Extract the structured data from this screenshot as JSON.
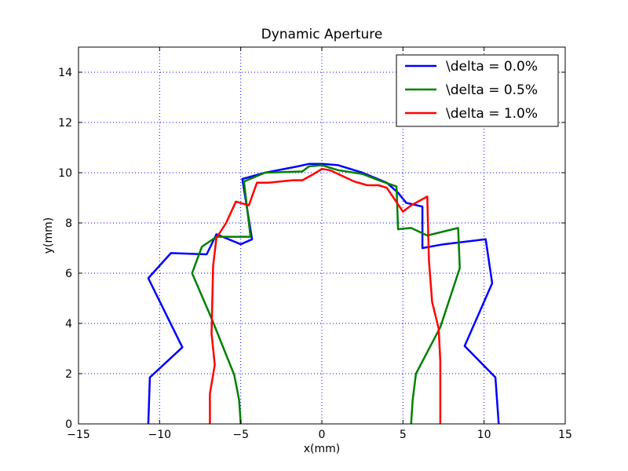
{
  "chart_data": {
    "type": "line",
    "title": "Dynamic Aperture",
    "xlabel": "x(mm)",
    "ylabel": "y(mm)",
    "xlim": [
      -15,
      15
    ],
    "ylim": [
      0,
      15
    ],
    "xticks": [
      -15,
      -10,
      -5,
      0,
      5,
      10,
      15
    ],
    "yticks": [
      0,
      2,
      4,
      6,
      8,
      10,
      12,
      14
    ],
    "xtick_labels": [
      "−15",
      "−10",
      "−5",
      "0",
      "5",
      "10",
      "15"
    ],
    "ytick_labels": [
      "0",
      "2",
      "4",
      "6",
      "8",
      "10",
      "12",
      "14"
    ],
    "grid": true,
    "legend_position": "top-right",
    "series": [
      {
        "name": "\\delta = 0.0%",
        "color": "#0000ff",
        "points": [
          [
            -10.7,
            0
          ],
          [
            -10.6,
            1.85
          ],
          [
            -8.6,
            3.05
          ],
          [
            -10.7,
            5.8
          ],
          [
            -9.3,
            6.8
          ],
          [
            -7.1,
            6.75
          ],
          [
            -6.5,
            7.55
          ],
          [
            -5.0,
            7.15
          ],
          [
            -4.3,
            7.35
          ],
          [
            -4.9,
            9.75
          ],
          [
            -3.5,
            10.0
          ],
          [
            -1.5,
            10.25
          ],
          [
            -0.8,
            10.35
          ],
          [
            0.0,
            10.35
          ],
          [
            1.0,
            10.3
          ],
          [
            2.5,
            10.0
          ],
          [
            4.0,
            9.6
          ],
          [
            4.7,
            9.2
          ],
          [
            5.2,
            8.8
          ],
          [
            6.2,
            8.65
          ],
          [
            6.2,
            7.0
          ],
          [
            7.5,
            7.15
          ],
          [
            10.1,
            7.35
          ],
          [
            10.5,
            5.6
          ],
          [
            8.8,
            3.1
          ],
          [
            10.7,
            1.85
          ],
          [
            10.9,
            0
          ]
        ]
      },
      {
        "name": "\\delta = 0.5%",
        "color": "#008000",
        "points": [
          [
            -5.0,
            0
          ],
          [
            -5.1,
            0.95
          ],
          [
            -5.4,
            1.95
          ],
          [
            -6.8,
            4.2
          ],
          [
            -8.0,
            6.0
          ],
          [
            -7.4,
            7.05
          ],
          [
            -6.5,
            7.45
          ],
          [
            -4.4,
            7.45
          ],
          [
            -4.8,
            9.65
          ],
          [
            -3.5,
            10.0
          ],
          [
            -1.2,
            10.05
          ],
          [
            -0.8,
            10.25
          ],
          [
            0.0,
            10.3
          ],
          [
            1.0,
            10.1
          ],
          [
            2.5,
            9.95
          ],
          [
            3.5,
            9.7
          ],
          [
            4.6,
            9.45
          ],
          [
            4.7,
            7.75
          ],
          [
            5.5,
            7.8
          ],
          [
            6.5,
            7.5
          ],
          [
            8.4,
            7.8
          ],
          [
            8.5,
            6.2
          ],
          [
            7.3,
            3.85
          ],
          [
            5.8,
            2.0
          ],
          [
            5.6,
            0.95
          ],
          [
            5.5,
            0
          ]
        ]
      },
      {
        "name": "\\delta = 1.0%",
        "color": "#ff0000",
        "points": [
          [
            -6.9,
            0
          ],
          [
            -6.9,
            1.2
          ],
          [
            -6.6,
            2.35
          ],
          [
            -6.8,
            3.6
          ],
          [
            -6.7,
            6.3
          ],
          [
            -6.5,
            7.4
          ],
          [
            -5.9,
            8.0
          ],
          [
            -5.3,
            8.85
          ],
          [
            -4.5,
            8.7
          ],
          [
            -4.0,
            9.6
          ],
          [
            -3.3,
            9.6
          ],
          [
            -1.8,
            9.7
          ],
          [
            -1.2,
            9.7
          ],
          [
            -0.5,
            9.95
          ],
          [
            0.0,
            10.15
          ],
          [
            0.5,
            10.1
          ],
          [
            1.0,
            9.95
          ],
          [
            2.0,
            9.65
          ],
          [
            2.8,
            9.5
          ],
          [
            3.5,
            9.5
          ],
          [
            4.0,
            9.4
          ],
          [
            5.0,
            8.45
          ],
          [
            5.5,
            8.7
          ],
          [
            6.5,
            9.05
          ],
          [
            6.6,
            6.5
          ],
          [
            6.8,
            4.85
          ],
          [
            7.2,
            3.8
          ],
          [
            7.3,
            2.5
          ],
          [
            7.3,
            1.2
          ],
          [
            7.3,
            0
          ]
        ]
      }
    ]
  }
}
